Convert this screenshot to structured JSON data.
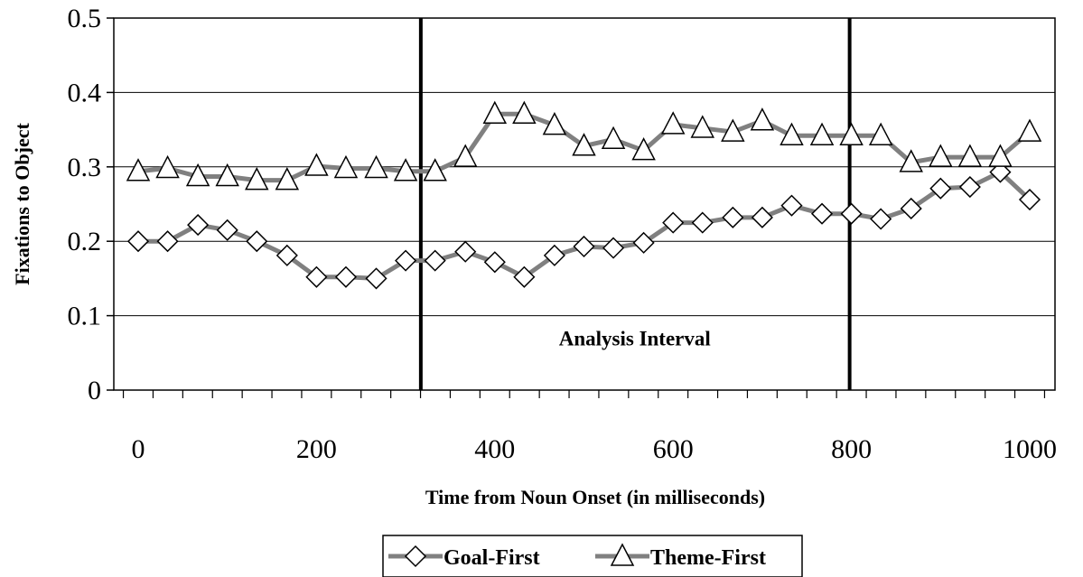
{
  "chart_data": {
    "type": "line",
    "xlabel": "Time from Noun Onset (in milliseconds)",
    "ylabel": "Fixations to Object",
    "xlim": [
      0,
      1000
    ],
    "ylim": [
      0,
      0.5
    ],
    "xticks": [
      0,
      200,
      400,
      600,
      800,
      1000
    ],
    "yticks": [
      0,
      0.1,
      0.2,
      0.3,
      0.4,
      0.5
    ],
    "y_grid": true,
    "legend_position": "bottom",
    "series": [
      {
        "name": "Goal-First",
        "marker": "diamond",
        "color": "#808080",
        "x": [
          0,
          33,
          67,
          100,
          133,
          167,
          200,
          233,
          267,
          300,
          333,
          367,
          400,
          433,
          467,
          500,
          533,
          567,
          600,
          633,
          667,
          700,
          733,
          767,
          800,
          833,
          867,
          900,
          933,
          967,
          1000
        ],
        "values": [
          0.2,
          0.2,
          0.222,
          0.215,
          0.2,
          0.181,
          0.152,
          0.152,
          0.15,
          0.174,
          0.174,
          0.186,
          0.172,
          0.152,
          0.181,
          0.193,
          0.191,
          0.198,
          0.225,
          0.225,
          0.232,
          0.232,
          0.248,
          0.237,
          0.237,
          0.23,
          0.244,
          0.271,
          0.273,
          0.293,
          0.256
        ]
      },
      {
        "name": "Theme-First",
        "marker": "triangle",
        "color": "#808080",
        "x": [
          0,
          33,
          67,
          100,
          133,
          167,
          200,
          233,
          267,
          300,
          333,
          367,
          400,
          433,
          467,
          500,
          533,
          567,
          600,
          633,
          667,
          700,
          733,
          767,
          800,
          833,
          867,
          900,
          933,
          967,
          1000
        ],
        "values": [
          0.294,
          0.298,
          0.287,
          0.287,
          0.282,
          0.282,
          0.301,
          0.298,
          0.298,
          0.294,
          0.294,
          0.313,
          0.371,
          0.371,
          0.356,
          0.328,
          0.337,
          0.322,
          0.357,
          0.352,
          0.347,
          0.362,
          0.342,
          0.342,
          0.342,
          0.342,
          0.306,
          0.313,
          0.313,
          0.313,
          0.347
        ]
      }
    ],
    "vertical_markers": [
      {
        "x": 317
      },
      {
        "x": 798
      }
    ],
    "annotation": {
      "text": "Analysis Interval",
      "x": 557,
      "y": 0.06
    }
  }
}
